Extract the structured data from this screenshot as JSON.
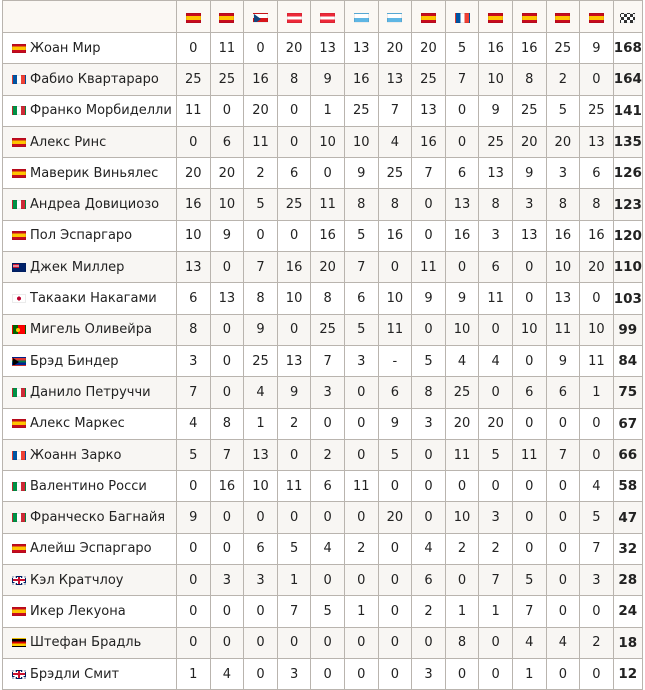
{
  "header": {
    "rounds": [
      "es",
      "es",
      "cz",
      "at",
      "at",
      "sm",
      "sm",
      "es",
      "fr",
      "es",
      "es",
      "es",
      "es"
    ],
    "total_icon": "checkered-flag-icon"
  },
  "riders": [
    {
      "flag": "es",
      "name": "Жоан Мир",
      "scores": [
        "0",
        "11",
        "0",
        "20",
        "13",
        "13",
        "20",
        "20",
        "5",
        "16",
        "16",
        "25",
        "9"
      ],
      "total": "168"
    },
    {
      "flag": "fr",
      "name": "Фабио Квартараро",
      "scores": [
        "25",
        "25",
        "16",
        "8",
        "9",
        "16",
        "13",
        "25",
        "7",
        "10",
        "8",
        "2",
        "0"
      ],
      "total": "164"
    },
    {
      "flag": "it",
      "name": "Франко Морбиделли",
      "scores": [
        "11",
        "0",
        "20",
        "0",
        "1",
        "25",
        "7",
        "13",
        "0",
        "9",
        "25",
        "5",
        "25"
      ],
      "total": "141"
    },
    {
      "flag": "es",
      "name": "Алекс Ринс",
      "scores": [
        "0",
        "6",
        "11",
        "0",
        "10",
        "10",
        "4",
        "16",
        "0",
        "25",
        "20",
        "20",
        "13"
      ],
      "total": "135"
    },
    {
      "flag": "es",
      "name": "Маверик Виньялес",
      "scores": [
        "20",
        "20",
        "2",
        "6",
        "0",
        "9",
        "25",
        "7",
        "6",
        "13",
        "9",
        "3",
        "6"
      ],
      "total": "126"
    },
    {
      "flag": "it",
      "name": "Андреа Довициозо",
      "scores": [
        "16",
        "10",
        "5",
        "25",
        "11",
        "8",
        "8",
        "0",
        "13",
        "8",
        "3",
        "8",
        "8"
      ],
      "total": "123"
    },
    {
      "flag": "es",
      "name": "Пол Эспаргаро",
      "scores": [
        "10",
        "9",
        "0",
        "0",
        "16",
        "5",
        "16",
        "0",
        "16",
        "3",
        "13",
        "16",
        "16"
      ],
      "total": "120"
    },
    {
      "flag": "au",
      "name": "Джек Миллер",
      "scores": [
        "13",
        "0",
        "7",
        "16",
        "20",
        "7",
        "0",
        "11",
        "0",
        "6",
        "0",
        "10",
        "20"
      ],
      "total": "110"
    },
    {
      "flag": "jp",
      "name": "Такааки Накагами",
      "scores": [
        "6",
        "13",
        "8",
        "10",
        "8",
        "6",
        "10",
        "9",
        "9",
        "11",
        "0",
        "13",
        "0"
      ],
      "total": "103"
    },
    {
      "flag": "pt",
      "name": "Мигель Оливейра",
      "scores": [
        "8",
        "0",
        "9",
        "0",
        "25",
        "5",
        "11",
        "0",
        "10",
        "0",
        "10",
        "11",
        "10"
      ],
      "total": "99"
    },
    {
      "flag": "za",
      "name": "Брэд Биндер",
      "scores": [
        "3",
        "0",
        "25",
        "13",
        "7",
        "3",
        "-",
        "5",
        "4",
        "4",
        "0",
        "9",
        "11"
      ],
      "total": "84"
    },
    {
      "flag": "it",
      "name": "Данило Петруччи",
      "scores": [
        "7",
        "0",
        "4",
        "9",
        "3",
        "0",
        "6",
        "8",
        "25",
        "0",
        "6",
        "6",
        "1"
      ],
      "total": "75"
    },
    {
      "flag": "es",
      "name": "Алекс Маркес",
      "scores": [
        "4",
        "8",
        "1",
        "2",
        "0",
        "0",
        "9",
        "3",
        "20",
        "20",
        "0",
        "0",
        "0"
      ],
      "total": "67"
    },
    {
      "flag": "fr",
      "name": "Жоанн Зарко",
      "scores": [
        "5",
        "7",
        "13",
        "0",
        "2",
        "0",
        "5",
        "0",
        "11",
        "5",
        "11",
        "7",
        "0"
      ],
      "total": "66"
    },
    {
      "flag": "it",
      "name": "Валентино Росси",
      "scores": [
        "0",
        "16",
        "10",
        "11",
        "6",
        "11",
        "0",
        "0",
        "0",
        "0",
        "0",
        "0",
        "4"
      ],
      "total": "58"
    },
    {
      "flag": "it",
      "name": "Франческо Багнайя",
      "scores": [
        "9",
        "0",
        "0",
        "0",
        "0",
        "0",
        "20",
        "0",
        "10",
        "3",
        "0",
        "0",
        "5"
      ],
      "total": "47"
    },
    {
      "flag": "es",
      "name": "Алейш Эспаргаро",
      "scores": [
        "0",
        "0",
        "6",
        "5",
        "4",
        "2",
        "0",
        "4",
        "2",
        "2",
        "0",
        "0",
        "7"
      ],
      "total": "32"
    },
    {
      "flag": "gb",
      "name": "Кэл Кратчлоу",
      "scores": [
        "0",
        "3",
        "3",
        "1",
        "0",
        "0",
        "0",
        "6",
        "0",
        "7",
        "5",
        "0",
        "3"
      ],
      "total": "28"
    },
    {
      "flag": "es",
      "name": "Икер Лекуона",
      "scores": [
        "0",
        "0",
        "0",
        "7",
        "5",
        "1",
        "0",
        "2",
        "1",
        "1",
        "7",
        "0",
        "0"
      ],
      "total": "24"
    },
    {
      "flag": "de",
      "name": "Штефан Брадль",
      "scores": [
        "0",
        "0",
        "0",
        "0",
        "0",
        "0",
        "0",
        "0",
        "8",
        "0",
        "4",
        "4",
        "2"
      ],
      "total": "18"
    },
    {
      "flag": "gb",
      "name": "Брэдли Смит",
      "scores": [
        "1",
        "4",
        "0",
        "3",
        "0",
        "0",
        "0",
        "3",
        "0",
        "0",
        "1",
        "0",
        "0"
      ],
      "total": "12"
    }
  ]
}
